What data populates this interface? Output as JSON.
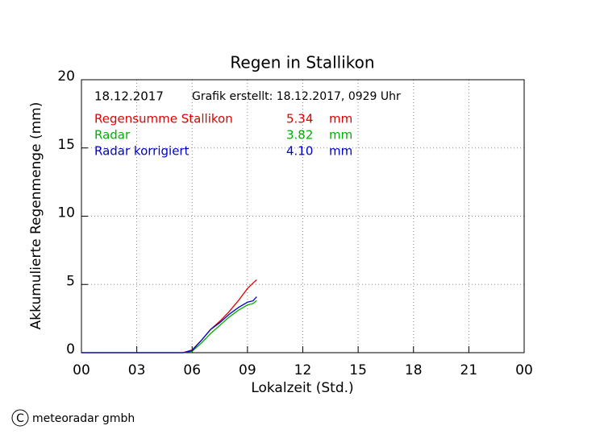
{
  "chart_data": {
    "type": "line",
    "title": "Regen in Stallikon",
    "date": "18.12.2017",
    "created": "Grafik erstellt: 18.12.2017, 0929 Uhr",
    "unit": "mm",
    "xlabel": "Lokalzeit (Std.)",
    "ylabel": "Akkumulierte Regenmenge (mm)",
    "credit_symbol": "C",
    "credit": "meteoradar gmbh",
    "x": [
      0,
      5.5,
      6,
      6.5,
      7,
      7.5,
      8,
      8.5,
      9,
      9.3,
      9.5
    ],
    "series": [
      {
        "name": "Regensumme Stallikon",
        "color": "#e00000",
        "total": "5.34",
        "values": [
          0,
          0,
          0.2,
          0.9,
          1.7,
          2.3,
          3.0,
          3.8,
          4.7,
          5.1,
          5.34
        ]
      },
      {
        "name": "Radar",
        "color": "#00b000",
        "total": "3.82",
        "values": [
          0,
          0,
          0.1,
          0.7,
          1.4,
          2.0,
          2.6,
          3.1,
          3.5,
          3.6,
          3.82
        ]
      },
      {
        "name": "Radar korrigiert",
        "color": "#0000d0",
        "total": "4.10",
        "values": [
          0,
          0,
          0.15,
          0.9,
          1.7,
          2.2,
          2.8,
          3.3,
          3.7,
          3.8,
          4.1
        ]
      }
    ],
    "xlim": [
      0,
      24
    ],
    "xticks": [
      {
        "value": 0,
        "label": "00"
      },
      {
        "value": 3,
        "label": "03"
      },
      {
        "value": 6,
        "label": "06"
      },
      {
        "value": 9,
        "label": "09"
      },
      12,
      15,
      18,
      21,
      {
        "value": 24,
        "label": "00"
      }
    ],
    "ylim": [
      0,
      20
    ],
    "yticks": [
      0,
      5,
      10,
      15,
      20
    ],
    "grid": true
  }
}
